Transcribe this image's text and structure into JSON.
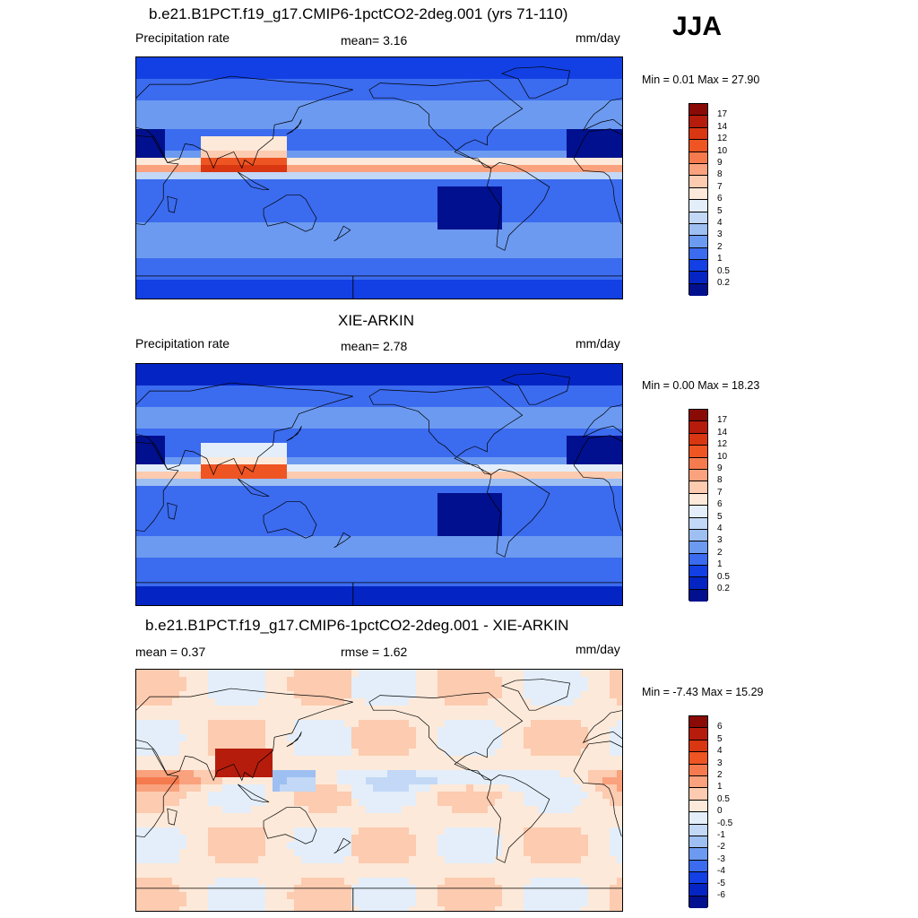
{
  "season": "JJA",
  "panels": [
    {
      "title": "b.e21.B1PCT.f19_g17.CMIP6-1pctCO2-2deg.001 (yrs 71-110)",
      "left_label": "Precipitation rate",
      "center_label": "mean=   3.16",
      "right_label": "mm/day",
      "minmax": "Min =   0.01 Max =  27.90",
      "map_type": "model-precipitation"
    },
    {
      "title": "XIE-ARKIN",
      "left_label": "Precipitation rate",
      "center_label": "mean=   2.78",
      "right_label": "mm/day",
      "minmax": "Min =   0.00 Max =  18.23",
      "map_type": "observed-precipitation"
    },
    {
      "title": "b.e21.B1PCT.f19_g17.CMIP6-1pctCO2-2deg.001 - XIE-ARKIN",
      "left_label": "mean =   0.37",
      "center_label": "rmse =   1.62",
      "right_label": "mm/day",
      "minmax": "Min =  -7.43 Max =  15.29",
      "map_type": "difference"
    }
  ],
  "precip_colorbar": {
    "levels": [
      "17",
      "14",
      "12",
      "10",
      "9",
      "8",
      "7",
      "6",
      "5",
      "4",
      "3",
      "2",
      "1",
      "0.5",
      "0.2"
    ],
    "colors": [
      "#8a0a06",
      "#b51c0c",
      "#d93612",
      "#ee5522",
      "#f57b4e",
      "#f9a27d",
      "#fccbb0",
      "#fde9d9",
      "#e3eefa",
      "#c2d8f6",
      "#9ebff2",
      "#6c9af0",
      "#3b6bef",
      "#1240e4",
      "#0425c4",
      "#01108e"
    ]
  },
  "diff_colorbar": {
    "levels": [
      "6",
      "5",
      "4",
      "3",
      "2",
      "1",
      "0.5",
      "0",
      "-0.5",
      "-1",
      "-2",
      "-3",
      "-4",
      "-5",
      "-6"
    ],
    "colors": [
      "#8a0a06",
      "#b51c0c",
      "#d93612",
      "#ee5522",
      "#f57b4e",
      "#f9a27d",
      "#fccbb0",
      "#fde9d9",
      "#e3eefa",
      "#c2d8f6",
      "#9ebff2",
      "#6c9af0",
      "#3b6bef",
      "#1240e4",
      "#0425c4",
      "#01108e"
    ]
  }
}
